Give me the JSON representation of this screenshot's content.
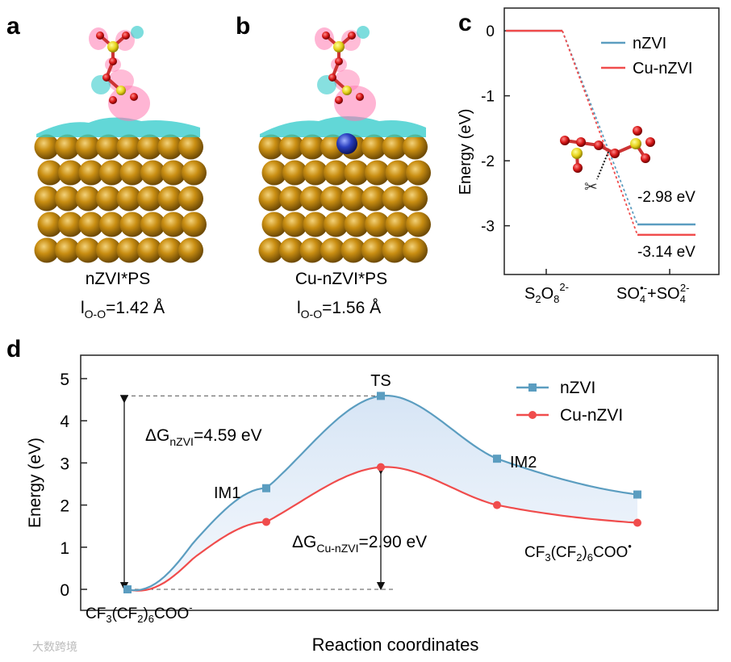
{
  "panel_letters": {
    "a": "a",
    "b": "b",
    "c": "c",
    "d": "d"
  },
  "panel_a": {
    "caption": "nZVI*PS",
    "bond_main": "l",
    "bond_sub": "O-O",
    "bond_value": "=1.42 Å"
  },
  "panel_b": {
    "caption": "Cu-nZVI*PS",
    "bond_main": "l",
    "bond_sub": "O-O",
    "bond_value": "=1.56 Å"
  },
  "colors": {
    "nzvi": "#5b9dc0",
    "cu_nzvi": "#f04c4c",
    "fe_atom": "#b8860b",
    "cu_atom": "#2233aa"
  },
  "chart_data": [
    {
      "type": "line",
      "ylabel": "Energy (eV)",
      "xlabel": "",
      "ylim": [
        -3.75,
        0.35
      ],
      "yticks": [
        "0",
        "-1",
        "-2",
        "-3"
      ],
      "categories": [
        "S2O8^2-",
        "SO4•- + SO4^2-"
      ],
      "x_tick_labels": {
        "left": {
          "main": "S",
          "s1": "2",
          "m2": "O",
          "s2": "8",
          "sup": "2-"
        },
        "right": {
          "main": "SO",
          "s1": "4",
          "sup1": "•-",
          "m2": "+SO",
          "s2": "4",
          "sup2": "2-"
        }
      },
      "series": [
        {
          "name": "nZVI",
          "values": [
            0,
            -2.98
          ]
        },
        {
          "name": "Cu-nZVI",
          "values": [
            0,
            -3.14
          ]
        }
      ],
      "annotations": [
        "-2.98 eV",
        "-3.14 eV"
      ],
      "legend": "top-right"
    },
    {
      "type": "line",
      "xlabel": "Reaction coordinates",
      "ylabel": "Energy (eV)",
      "ylim": [
        0,
        5
      ],
      "yticks": [
        "0",
        "1",
        "2",
        "3",
        "4",
        "5"
      ],
      "points": [
        "CF3(CF2)6COO-",
        "IM1",
        "TS",
        "IM2",
        "CF3(CF2)6COO•"
      ],
      "series": [
        {
          "name": "nZVI",
          "values": [
            0,
            2.4,
            4.59,
            3.1,
            2.25
          ]
        },
        {
          "name": "Cu-nZVI",
          "values": [
            0,
            1.6,
            2.9,
            2.0,
            1.58
          ]
        }
      ],
      "point_labels": {
        "ts": "TS",
        "im1": "IM1",
        "im2": "IM2"
      },
      "start_label": {
        "a": "CF",
        "s1": "3",
        "b": "(CF",
        "s2": "2",
        "c": ")",
        "s3": "6",
        "d": "COO",
        "sup": "-"
      },
      "end_label": {
        "a": "CF",
        "s1": "3",
        "b": "(CF",
        "s2": "2",
        "c": ")",
        "s3": "6",
        "d": "COO",
        "sup": "•"
      },
      "delta_nzvi": {
        "a": "ΔG",
        "sub": "nZVI",
        "b": "=4.59 eV"
      },
      "delta_cu": {
        "a": "ΔG",
        "sub": "Cu-nZVI",
        "b": "=2.90 eV"
      },
      "legend": "top-right"
    }
  ],
  "watermark": "大数跨境"
}
